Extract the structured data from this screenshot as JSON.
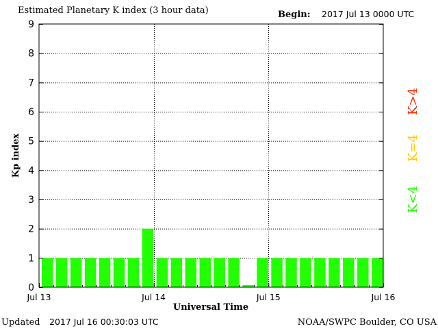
{
  "header": {
    "title": "Estimated Planetary K index (3 hour data)",
    "begin_label": "Begin:",
    "begin_value": "2017 Jul 13 0000 UTC"
  },
  "footer": {
    "updated_label": "Updated",
    "updated_value": "2017 Jul 16 00:30:03 UTC",
    "credit": "NOAA/SWPC Boulder, CO USA"
  },
  "legend": {
    "above": "K>4",
    "equal": "K=4",
    "below": "K<4"
  },
  "colors": {
    "bar_below": "#22ff00",
    "bar_equal": "#ffcc00",
    "bar_above": "#ff2a00",
    "legend_above": "#ff2a00",
    "legend_equal": "#ffcc00",
    "legend_below": "#22ff00"
  },
  "chart_data": {
    "type": "bar",
    "xlabel": "Universal Time",
    "ylabel": "Kp index",
    "ylim": [
      0,
      9
    ],
    "yticks": [
      0,
      1,
      2,
      3,
      4,
      5,
      6,
      7,
      8,
      9
    ],
    "xticks": [
      "Jul 13",
      "Jul 14",
      "Jul 15",
      "Jul 16"
    ],
    "grid": "dotted vertical at day boundaries, dotted horizontal at each integer",
    "interval_hours": 3,
    "values": [
      1,
      1,
      1,
      1,
      1,
      1,
      1,
      2,
      1,
      1,
      1,
      1,
      1,
      1,
      0.07,
      1,
      1,
      1,
      1,
      1,
      1,
      1,
      1,
      1
    ]
  }
}
